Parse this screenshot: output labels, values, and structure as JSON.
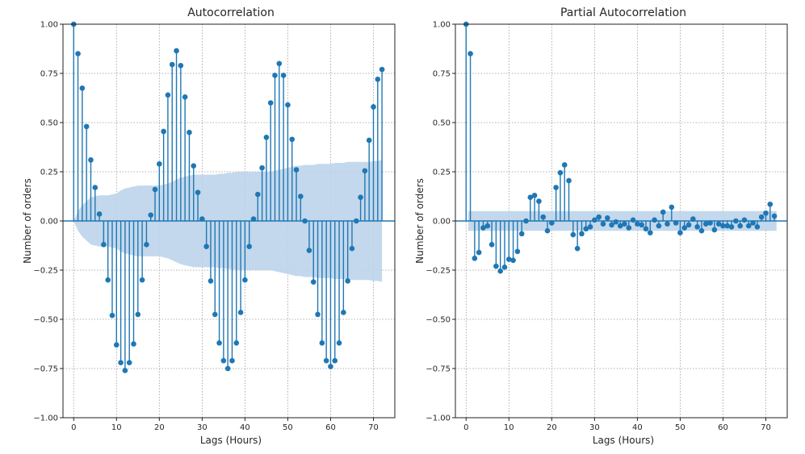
{
  "chart_data": [
    {
      "type": "stem",
      "title": "Autocorrelation",
      "xlabel": "Lags (Hours)",
      "ylabel": "Number of orders",
      "xlim": [
        -2.5,
        75
      ],
      "ylim": [
        -1.0,
        1.0
      ],
      "xticks": [
        0,
        10,
        20,
        30,
        40,
        50,
        60,
        70
      ],
      "yticks": [
        -1.0,
        -0.75,
        -0.5,
        -0.25,
        0.0,
        0.25,
        0.5,
        0.75,
        1.0
      ],
      "ytick_labels": [
        "−1.00",
        "−0.75",
        "−0.50",
        "−0.25",
        "0.00",
        "0.25",
        "0.50",
        "0.75",
        "1.00"
      ],
      "grid": true,
      "color": "#1f77b4",
      "band_color": "#bcd4ea",
      "x": [
        0,
        1,
        2,
        3,
        4,
        5,
        6,
        7,
        8,
        9,
        10,
        11,
        12,
        13,
        14,
        15,
        16,
        17,
        18,
        19,
        20,
        21,
        22,
        23,
        24,
        25,
        26,
        27,
        28,
        29,
        30,
        31,
        32,
        33,
        34,
        35,
        36,
        37,
        38,
        39,
        40,
        41,
        42,
        43,
        44,
        45,
        46,
        47,
        48,
        49,
        50,
        51,
        52,
        53,
        54,
        55,
        56,
        57,
        58,
        59,
        60,
        61,
        62,
        63,
        64,
        65,
        66,
        67,
        68,
        69,
        70,
        71,
        72
      ],
      "values": [
        1.0,
        0.85,
        0.675,
        0.48,
        0.31,
        0.17,
        0.035,
        -0.12,
        -0.3,
        -0.48,
        -0.63,
        -0.72,
        -0.76,
        -0.72,
        -0.625,
        -0.475,
        -0.3,
        -0.12,
        0.03,
        0.16,
        0.29,
        0.455,
        0.64,
        0.795,
        0.865,
        0.79,
        0.63,
        0.45,
        0.28,
        0.145,
        0.01,
        -0.13,
        -0.305,
        -0.475,
        -0.62,
        -0.71,
        -0.75,
        -0.71,
        -0.62,
        -0.465,
        -0.3,
        -0.13,
        0.01,
        0.135,
        0.27,
        0.425,
        0.6,
        0.74,
        0.8,
        0.74,
        0.59,
        0.415,
        0.26,
        0.125,
        0.0,
        -0.15,
        -0.31,
        -0.475,
        -0.62,
        -0.71,
        -0.74,
        -0.71,
        -0.62,
        -0.465,
        -0.305,
        -0.14,
        0.0,
        0.12,
        0.255,
        0.41,
        0.58,
        0.72,
        0.77
      ],
      "confint_upper": [
        0.0,
        0.05,
        0.08,
        0.1,
        0.12,
        0.125,
        0.13,
        0.13,
        0.13,
        0.135,
        0.14,
        0.155,
        0.165,
        0.17,
        0.175,
        0.18,
        0.18,
        0.18,
        0.18,
        0.18,
        0.18,
        0.185,
        0.19,
        0.2,
        0.21,
        0.22,
        0.225,
        0.23,
        0.235,
        0.235,
        0.235,
        0.235,
        0.235,
        0.235,
        0.24,
        0.24,
        0.245,
        0.245,
        0.25,
        0.25,
        0.25,
        0.25,
        0.25,
        0.25,
        0.25,
        0.25,
        0.25,
        0.255,
        0.26,
        0.265,
        0.27,
        0.275,
        0.28,
        0.28,
        0.285,
        0.285,
        0.285,
        0.29,
        0.29,
        0.29,
        0.29,
        0.295,
        0.295,
        0.295,
        0.3,
        0.3,
        0.3,
        0.3,
        0.3,
        0.3,
        0.305,
        0.305,
        0.31
      ]
    },
    {
      "type": "stem",
      "title": "Partial Autocorrelation",
      "xlabel": "Lags (Hours)",
      "ylabel": "Number of orders",
      "xlim": [
        -2.5,
        75
      ],
      "ylim": [
        -1.0,
        1.0
      ],
      "xticks": [
        0,
        10,
        20,
        30,
        40,
        50,
        60,
        70
      ],
      "yticks": [
        -1.0,
        -0.75,
        -0.5,
        -0.25,
        0.0,
        0.25,
        0.5,
        0.75,
        1.0
      ],
      "ytick_labels": [
        "−1.00",
        "−0.75",
        "−0.50",
        "−0.25",
        "0.00",
        "0.25",
        "0.50",
        "0.75",
        "1.00"
      ],
      "grid": true,
      "color": "#1f77b4",
      "band_color": "#bcd4ea",
      "confint_half_width": 0.05,
      "x": [
        0,
        1,
        2,
        3,
        4,
        5,
        6,
        7,
        8,
        9,
        10,
        11,
        12,
        13,
        14,
        15,
        16,
        17,
        18,
        19,
        20,
        21,
        22,
        23,
        24,
        25,
        26,
        27,
        28,
        29,
        30,
        31,
        32,
        33,
        34,
        35,
        36,
        37,
        38,
        39,
        40,
        41,
        42,
        43,
        44,
        45,
        46,
        47,
        48,
        49,
        50,
        51,
        52,
        53,
        54,
        55,
        56,
        57,
        58,
        59,
        60,
        61,
        62,
        63,
        64,
        65,
        66,
        67,
        68,
        69,
        70,
        71,
        72
      ],
      "values": [
        1.0,
        0.85,
        -0.19,
        -0.16,
        -0.035,
        -0.025,
        -0.12,
        -0.23,
        -0.255,
        -0.235,
        -0.195,
        -0.2,
        -0.155,
        -0.065,
        0.0,
        0.12,
        0.13,
        0.1,
        0.02,
        -0.05,
        -0.01,
        0.17,
        0.245,
        0.285,
        0.205,
        -0.07,
        -0.14,
        -0.065,
        -0.04,
        -0.03,
        0.005,
        0.02,
        -0.015,
        0.015,
        -0.02,
        -0.005,
        -0.025,
        -0.015,
        -0.035,
        0.005,
        -0.015,
        -0.02,
        -0.04,
        -0.06,
        0.005,
        -0.025,
        0.045,
        -0.015,
        0.07,
        -0.01,
        -0.06,
        -0.035,
        -0.02,
        0.01,
        -0.03,
        -0.05,
        -0.015,
        -0.01,
        -0.045,
        -0.015,
        -0.025,
        -0.025,
        -0.03,
        0.0,
        -0.025,
        0.005,
        -0.025,
        -0.01,
        -0.03,
        0.02,
        0.04,
        0.085,
        0.025
      ]
    }
  ]
}
